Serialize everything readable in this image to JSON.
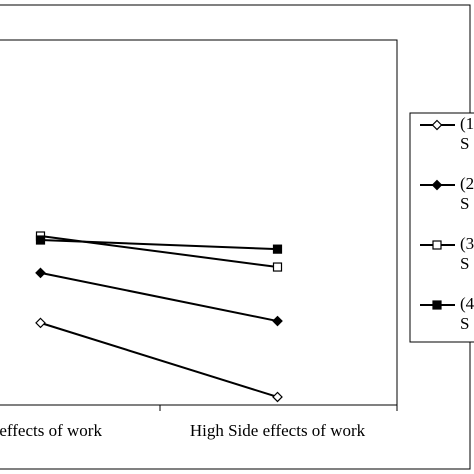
{
  "chart_data": {
    "type": "line",
    "categories": [
      "de effects of work",
      "High Side effects of work"
    ],
    "series": [
      {
        "name": "(1",
        "note": "S",
        "color": "#000000",
        "marker": "diamond-open",
        "values": [
          2.25,
          0.22
        ]
      },
      {
        "name": "(2",
        "note": "S",
        "color": "#000000",
        "marker": "diamond-filled",
        "values": [
          3.62,
          2.3
        ]
      },
      {
        "name": "(3",
        "note": "S",
        "color": "#000000",
        "marker": "square-open",
        "values": [
          4.63,
          3.78
        ]
      },
      {
        "name": "(4",
        "note": "S",
        "color": "#000000",
        "marker": "square-filled",
        "values": [
          4.52,
          4.27
        ]
      }
    ],
    "ylim": [
      0,
      10
    ]
  }
}
